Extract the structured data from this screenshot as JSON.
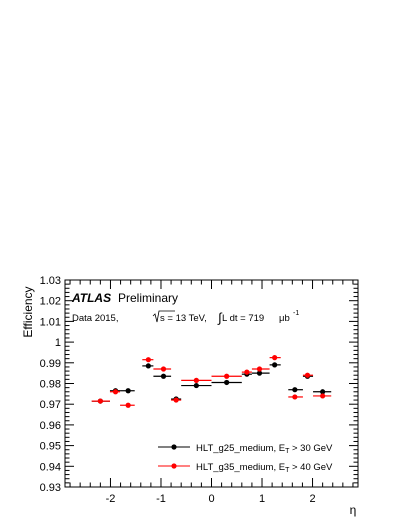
{
  "chart_data": {
    "type": "scatter",
    "title_bold": "ATLAS",
    "title_rest": "Preliminary",
    "info": {
      "prefix": "Data 2015, ",
      "sqrt_s": "s = 13 TeV, ",
      "lumi": " L dt = 719 ",
      "unit": "μb",
      "unit_exp": "-1"
    },
    "xlabel": "η",
    "ylabel": "Efficiency",
    "xlim": [
      -2.9,
      2.9
    ],
    "ylim": [
      0.93,
      1.03
    ],
    "x_ticks": [
      -2,
      -1,
      0,
      1,
      2
    ],
    "x_tick_labels": [
      "-2",
      "-1",
      "0",
      "1",
      "2"
    ],
    "y_ticks": [
      0.93,
      0.94,
      0.95,
      0.96,
      0.97,
      0.98,
      0.99,
      1.0,
      1.01,
      1.02,
      1.03
    ],
    "y_tick_labels": [
      "0.93",
      "0.94",
      "0.95",
      "0.96",
      "0.97",
      "0.98",
      "0.99",
      "1",
      "1.01",
      "1.02",
      "1.03"
    ],
    "grid": false,
    "legend_position": "bottom-right",
    "series": [
      {
        "name_main": "HLT_g25_medium, E",
        "name_sub": "T",
        "name_cut": " > 30 GeV",
        "color": "#000000",
        "points": [
          {
            "x": -2.2,
            "xlo": -2.37,
            "xhi": -2.01,
            "y": 0.9715,
            "err": 0.0008
          },
          {
            "x": -1.9,
            "xlo": -2.01,
            "xhi": -1.81,
            "y": 0.9765,
            "err": 0.0005
          },
          {
            "x": -1.65,
            "xlo": -1.81,
            "xhi": -1.52,
            "y": 0.9765,
            "err": 0.0005
          },
          {
            "x": -1.25,
            "xlo": -1.37,
            "xhi": -1.15,
            "y": 0.9885,
            "err": 0.0005
          },
          {
            "x": -0.95,
            "xlo": -1.15,
            "xhi": -0.8,
            "y": 0.9835,
            "err": 0.0005
          },
          {
            "x": -0.7,
            "xlo": -0.8,
            "xhi": -0.6,
            "y": 0.9725,
            "err": 0.0008
          },
          {
            "x": -0.3,
            "xlo": -0.6,
            "xhi": 0.0,
            "y": 0.979,
            "err": 0.0004
          },
          {
            "x": 0.3,
            "xlo": 0.0,
            "xhi": 0.6,
            "y": 0.9805,
            "err": 0.0004
          },
          {
            "x": 0.7,
            "xlo": 0.6,
            "xhi": 0.8,
            "y": 0.9845,
            "err": 0.0006
          },
          {
            "x": 0.95,
            "xlo": 0.8,
            "xhi": 1.15,
            "y": 0.985,
            "err": 0.0005
          },
          {
            "x": 1.25,
            "xlo": 1.15,
            "xhi": 1.37,
            "y": 0.989,
            "err": 0.0005
          },
          {
            "x": 1.65,
            "xlo": 1.52,
            "xhi": 1.81,
            "y": 0.977,
            "err": 0.0005
          },
          {
            "x": 1.9,
            "xlo": 1.81,
            "xhi": 2.01,
            "y": 0.9835,
            "err": 0.0005
          },
          {
            "x": 2.2,
            "xlo": 2.01,
            "xhi": 2.37,
            "y": 0.976,
            "err": 0.0005
          }
        ]
      },
      {
        "name_main": "HLT_g35_medium, E",
        "name_sub": "T",
        "name_cut": " > 40 GeV",
        "color": "#ff0000",
        "points": [
          {
            "x": -2.2,
            "xlo": -2.37,
            "xhi": -2.01,
            "y": 0.9715,
            "err": 0.0008
          },
          {
            "x": -1.9,
            "xlo": -2.01,
            "xhi": -1.81,
            "y": 0.976,
            "err": 0.0008
          },
          {
            "x": -1.65,
            "xlo": -1.81,
            "xhi": -1.52,
            "y": 0.9695,
            "err": 0.0007
          },
          {
            "x": -1.25,
            "xlo": -1.37,
            "xhi": -1.15,
            "y": 0.9915,
            "err": 0.0006
          },
          {
            "x": -0.95,
            "xlo": -1.15,
            "xhi": -0.8,
            "y": 0.987,
            "err": 0.0006
          },
          {
            "x": -0.7,
            "xlo": -0.8,
            "xhi": -0.6,
            "y": 0.972,
            "err": 0.0009
          },
          {
            "x": -0.3,
            "xlo": -0.6,
            "xhi": 0.0,
            "y": 0.9815,
            "err": 0.0004
          },
          {
            "x": 0.3,
            "xlo": 0.0,
            "xhi": 0.6,
            "y": 0.9835,
            "err": 0.0004
          },
          {
            "x": 0.7,
            "xlo": 0.6,
            "xhi": 0.8,
            "y": 0.9855,
            "err": 0.0006
          },
          {
            "x": 0.95,
            "xlo": 0.8,
            "xhi": 1.15,
            "y": 0.987,
            "err": 0.0006
          },
          {
            "x": 1.25,
            "xlo": 1.15,
            "xhi": 1.37,
            "y": 0.9925,
            "err": 0.0005
          },
          {
            "x": 1.65,
            "xlo": 1.52,
            "xhi": 1.81,
            "y": 0.9735,
            "err": 0.0007
          },
          {
            "x": 1.9,
            "xlo": 1.81,
            "xhi": 2.01,
            "y": 0.984,
            "err": 0.0007
          },
          {
            "x": 2.2,
            "xlo": 2.01,
            "xhi": 2.37,
            "y": 0.974,
            "err": 0.0006
          }
        ]
      }
    ]
  }
}
